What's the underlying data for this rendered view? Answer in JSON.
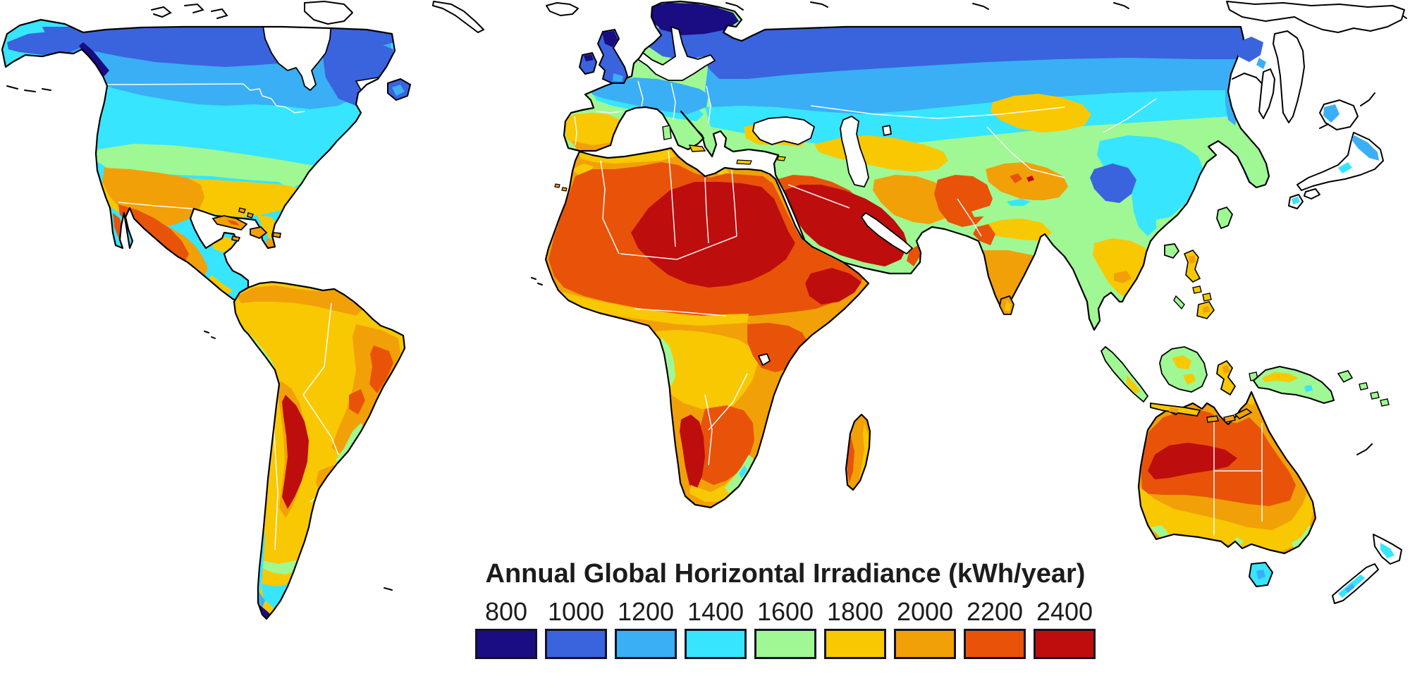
{
  "legend": {
    "title": "Annual Global Horizontal Irradiance (kWh/year)",
    "tick_labels": [
      "800",
      "1000",
      "1200",
      "1400",
      "1600",
      "1800",
      "2000",
      "2200",
      "2400"
    ],
    "colors": [
      "#1A0C82",
      "#3A63DE",
      "#3AAFF5",
      "#37E5FE",
      "#9FF893",
      "#F8C803",
      "#F2A008",
      "#E85309",
      "#BE0D0D"
    ],
    "swatch_border": "#141225",
    "text_color": "#1c1c1c"
  },
  "map": {
    "type": "world-choropleth",
    "units": "kWh/year",
    "value_bins": [
      800,
      1000,
      1200,
      1400,
      1600,
      1800,
      2000,
      2200,
      2400
    ],
    "ocean_color": "#FFFFFF",
    "coastline_color": "#000000",
    "country_border_color": "#FFFFFF"
  }
}
